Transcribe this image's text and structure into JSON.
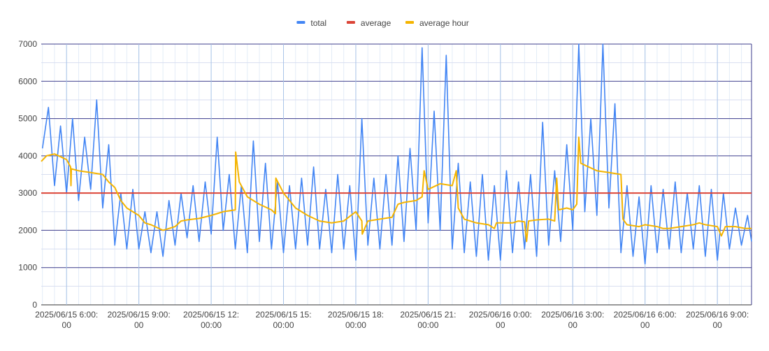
{
  "chart_data": {
    "type": "line",
    "title": "",
    "xlabel": "",
    "ylabel": "",
    "ylim": [
      0,
      7000
    ],
    "y_ticks": [
      0,
      1000,
      2000,
      3000,
      4000,
      5000,
      6000,
      7000
    ],
    "grid": true,
    "legend_position": "top-center",
    "x_range": [
      "2025/06/15 04:57",
      "2025/06/16 10:25"
    ],
    "x_tick_labels": [
      {
        "time": "2025/06/15 06:00",
        "line1": "2025/06/15 6:00:",
        "line2": "00"
      },
      {
        "time": "2025/06/15 09:00",
        "line1": "2025/06/15 9:00:",
        "line2": "00"
      },
      {
        "time": "2025/06/15 12:00",
        "line1": "2025/06/15 12:",
        "line2": "00:00"
      },
      {
        "time": "2025/06/15 15:00",
        "line1": "2025/06/15 15:",
        "line2": "00:00"
      },
      {
        "time": "2025/06/15 18:00",
        "line1": "2025/06/15 18:",
        "line2": "00:00"
      },
      {
        "time": "2025/06/15 21:00",
        "line1": "2025/06/15 21:",
        "line2": "00:00"
      },
      {
        "time": "2025/06/16 00:00",
        "line1": "2025/06/16 0:00:",
        "line2": "00"
      },
      {
        "time": "2025/06/16 03:00",
        "line1": "2025/06/16 3:00:",
        "line2": "00"
      },
      {
        "time": "2025/06/16 06:00",
        "line1": "2025/06/16 6:00:",
        "line2": "00"
      },
      {
        "time": "2025/06/16 09:00",
        "line1": "2025/06/16 9:00:",
        "line2": "00"
      }
    ],
    "series": [
      {
        "name": "total",
        "color": "#4285F4",
        "points": [
          [
            "2025/06/15 05:00",
            4200
          ],
          [
            "2025/06/15 05:15",
            5300
          ],
          [
            "2025/06/15 05:30",
            3200
          ],
          [
            "2025/06/15 05:45",
            4800
          ],
          [
            "2025/06/15 06:00",
            3000
          ],
          [
            "2025/06/15 06:15",
            5000
          ],
          [
            "2025/06/15 06:30",
            2800
          ],
          [
            "2025/06/15 06:45",
            4500
          ],
          [
            "2025/06/15 07:00",
            3100
          ],
          [
            "2025/06/15 07:15",
            5500
          ],
          [
            "2025/06/15 07:30",
            2600
          ],
          [
            "2025/06/15 07:45",
            4300
          ],
          [
            "2025/06/15 08:00",
            1600
          ],
          [
            "2025/06/15 08:15",
            3000
          ],
          [
            "2025/06/15 08:30",
            1500
          ],
          [
            "2025/06/15 08:45",
            3100
          ],
          [
            "2025/06/15 09:00",
            1500
          ],
          [
            "2025/06/15 09:15",
            2500
          ],
          [
            "2025/06/15 09:30",
            1400
          ],
          [
            "2025/06/15 09:45",
            2500
          ],
          [
            "2025/06/15 10:00",
            1300
          ],
          [
            "2025/06/15 10:15",
            2800
          ],
          [
            "2025/06/15 10:30",
            1600
          ],
          [
            "2025/06/15 10:45",
            3000
          ],
          [
            "2025/06/15 11:00",
            1800
          ],
          [
            "2025/06/15 11:15",
            3200
          ],
          [
            "2025/06/15 11:30",
            1700
          ],
          [
            "2025/06/15 11:45",
            3300
          ],
          [
            "2025/06/15 12:00",
            1900
          ],
          [
            "2025/06/15 12:15",
            4500
          ],
          [
            "2025/06/15 12:30",
            2000
          ],
          [
            "2025/06/15 12:45",
            3500
          ],
          [
            "2025/06/15 13:00",
            1500
          ],
          [
            "2025/06/15 13:15",
            3200
          ],
          [
            "2025/06/15 13:30",
            1400
          ],
          [
            "2025/06/15 13:45",
            4400
          ],
          [
            "2025/06/15 14:00",
            1700
          ],
          [
            "2025/06/15 14:15",
            3800
          ],
          [
            "2025/06/15 14:30",
            1500
          ],
          [
            "2025/06/15 14:45",
            3300
          ],
          [
            "2025/06/15 15:00",
            1400
          ],
          [
            "2025/06/15 15:15",
            3200
          ],
          [
            "2025/06/15 15:30",
            1500
          ],
          [
            "2025/06/15 15:45",
            3400
          ],
          [
            "2025/06/15 16:00",
            1600
          ],
          [
            "2025/06/15 16:15",
            3700
          ],
          [
            "2025/06/15 16:30",
            1500
          ],
          [
            "2025/06/15 16:45",
            3100
          ],
          [
            "2025/06/15 17:00",
            1400
          ],
          [
            "2025/06/15 17:15",
            3500
          ],
          [
            "2025/06/15 17:30",
            1500
          ],
          [
            "2025/06/15 17:45",
            3200
          ],
          [
            "2025/06/15 18:00",
            1200
          ],
          [
            "2025/06/15 18:15",
            5000
          ],
          [
            "2025/06/15 18:30",
            1600
          ],
          [
            "2025/06/15 18:45",
            3400
          ],
          [
            "2025/06/15 19:00",
            1500
          ],
          [
            "2025/06/15 19:15",
            3500
          ],
          [
            "2025/06/15 19:30",
            1600
          ],
          [
            "2025/06/15 19:45",
            4000
          ],
          [
            "2025/06/15 20:00",
            1700
          ],
          [
            "2025/06/15 20:15",
            4200
          ],
          [
            "2025/06/15 20:30",
            2000
          ],
          [
            "2025/06/15 20:45",
            6900
          ],
          [
            "2025/06/15 21:00",
            2200
          ],
          [
            "2025/06/15 21:15",
            5200
          ],
          [
            "2025/06/15 21:30",
            2000
          ],
          [
            "2025/06/15 21:45",
            6700
          ],
          [
            "2025/06/15 22:00",
            1500
          ],
          [
            "2025/06/15 22:15",
            3800
          ],
          [
            "2025/06/15 22:30",
            1400
          ],
          [
            "2025/06/15 22:45",
            3300
          ],
          [
            "2025/06/15 23:00",
            1300
          ],
          [
            "2025/06/15 23:15",
            3500
          ],
          [
            "2025/06/15 23:30",
            1200
          ],
          [
            "2025/06/15 23:45",
            3200
          ],
          [
            "2025/06/16 00:00",
            1200
          ],
          [
            "2025/06/16 00:15",
            3600
          ],
          [
            "2025/06/16 00:30",
            1400
          ],
          [
            "2025/06/16 00:45",
            3300
          ],
          [
            "2025/06/16 01:00",
            1500
          ],
          [
            "2025/06/16 01:15",
            3500
          ],
          [
            "2025/06/16 01:30",
            1300
          ],
          [
            "2025/06/16 01:45",
            4900
          ],
          [
            "2025/06/16 02:00",
            1600
          ],
          [
            "2025/06/16 02:15",
            3600
          ],
          [
            "2025/06/16 02:30",
            1700
          ],
          [
            "2025/06/16 02:45",
            4300
          ],
          [
            "2025/06/16 03:00",
            2000
          ],
          [
            "2025/06/16 03:15",
            7000
          ],
          [
            "2025/06/16 03:30",
            2500
          ],
          [
            "2025/06/16 03:45",
            5000
          ],
          [
            "2025/06/16 04:00",
            2400
          ],
          [
            "2025/06/16 04:15",
            7000
          ],
          [
            "2025/06/16 04:30",
            2600
          ],
          [
            "2025/06/16 04:45",
            5400
          ],
          [
            "2025/06/16 05:00",
            1400
          ],
          [
            "2025/06/16 05:15",
            3200
          ],
          [
            "2025/06/16 05:30",
            1300
          ],
          [
            "2025/06/16 05:45",
            2900
          ],
          [
            "2025/06/16 06:00",
            1100
          ],
          [
            "2025/06/16 06:15",
            3200
          ],
          [
            "2025/06/16 06:30",
            1400
          ],
          [
            "2025/06/16 06:45",
            3100
          ],
          [
            "2025/06/16 07:00",
            1500
          ],
          [
            "2025/06/16 07:15",
            3300
          ],
          [
            "2025/06/16 07:30",
            1400
          ],
          [
            "2025/06/16 07:45",
            3000
          ],
          [
            "2025/06/16 08:00",
            1500
          ],
          [
            "2025/06/16 08:15",
            3200
          ],
          [
            "2025/06/16 08:30",
            1300
          ],
          [
            "2025/06/16 08:45",
            3100
          ],
          [
            "2025/06/16 09:00",
            1200
          ],
          [
            "2025/06/16 09:15",
            3000
          ],
          [
            "2025/06/16 09:30",
            1500
          ],
          [
            "2025/06/16 09:45",
            2600
          ],
          [
            "2025/06/16 10:00",
            1600
          ],
          [
            "2025/06/16 10:15",
            2400
          ],
          [
            "2025/06/16 10:25",
            1700
          ]
        ]
      },
      {
        "name": "average",
        "color": "#DB4437",
        "points": [
          [
            "2025/06/15 04:57",
            3000
          ],
          [
            "2025/06/16 10:25",
            3000
          ]
        ]
      },
      {
        "name": "average hour",
        "color": "#F4B400",
        "points": [
          [
            "2025/06/15 04:57",
            3850
          ],
          [
            "2025/06/15 05:10",
            4000
          ],
          [
            "2025/06/15 05:30",
            4050
          ],
          [
            "2025/06/15 06:00",
            3900
          ],
          [
            "2025/06/15 06:10",
            3700
          ],
          [
            "2025/06/15 06:11",
            3200
          ],
          [
            "2025/06/15 06:12",
            3650
          ],
          [
            "2025/06/15 06:30",
            3600
          ],
          [
            "2025/06/15 07:00",
            3550
          ],
          [
            "2025/06/15 07:30",
            3500
          ],
          [
            "2025/06/15 07:45",
            3300
          ],
          [
            "2025/06/15 08:00",
            3150
          ],
          [
            "2025/06/15 08:15",
            2800
          ],
          [
            "2025/06/15 08:30",
            2600
          ],
          [
            "2025/06/15 09:00",
            2400
          ],
          [
            "2025/06/15 09:15",
            2200
          ],
          [
            "2025/06/15 09:30",
            2150
          ],
          [
            "2025/06/15 10:00",
            2000
          ],
          [
            "2025/06/15 10:15",
            2050
          ],
          [
            "2025/06/15 10:30",
            2100
          ],
          [
            "2025/06/15 10:45",
            2250
          ],
          [
            "2025/06/15 11:00",
            2280
          ],
          [
            "2025/06/15 11:30",
            2320
          ],
          [
            "2025/06/15 12:00",
            2400
          ],
          [
            "2025/06/15 12:15",
            2450
          ],
          [
            "2025/06/15 12:30",
            2500
          ],
          [
            "2025/06/15 13:00",
            2550
          ],
          [
            "2025/06/15 13:01",
            4100
          ],
          [
            "2025/06/15 13:10",
            3300
          ],
          [
            "2025/06/15 13:30",
            2900
          ],
          [
            "2025/06/15 14:00",
            2700
          ],
          [
            "2025/06/15 14:30",
            2550
          ],
          [
            "2025/06/15 14:40",
            2450
          ],
          [
            "2025/06/15 14:41",
            3400
          ],
          [
            "2025/06/15 15:00",
            3000
          ],
          [
            "2025/06/15 15:30",
            2600
          ],
          [
            "2025/06/15 16:00",
            2400
          ],
          [
            "2025/06/15 16:30",
            2250
          ],
          [
            "2025/06/15 17:00",
            2200
          ],
          [
            "2025/06/15 17:30",
            2250
          ],
          [
            "2025/06/15 18:00",
            2500
          ],
          [
            "2025/06/15 18:15",
            2250
          ],
          [
            "2025/06/15 18:16",
            1900
          ],
          [
            "2025/06/15 18:30",
            2250
          ],
          [
            "2025/06/15 19:00",
            2300
          ],
          [
            "2025/06/15 19:30",
            2350
          ],
          [
            "2025/06/15 19:45",
            2700
          ],
          [
            "2025/06/15 20:00",
            2750
          ],
          [
            "2025/06/15 20:30",
            2800
          ],
          [
            "2025/06/15 20:45",
            2900
          ],
          [
            "2025/06/15 20:50",
            3600
          ],
          [
            "2025/06/15 21:00",
            3100
          ],
          [
            "2025/06/15 21:30",
            3250
          ],
          [
            "2025/06/15 22:00",
            3200
          ],
          [
            "2025/06/15 22:10",
            3600
          ],
          [
            "2025/06/15 22:15",
            2600
          ],
          [
            "2025/06/15 22:30",
            2300
          ],
          [
            "2025/06/15 23:00",
            2200
          ],
          [
            "2025/06/15 23:30",
            2150
          ],
          [
            "2025/06/15 23:45",
            2050
          ],
          [
            "2025/06/15 23:50",
            2200
          ],
          [
            "2025/06/16 00:00",
            2200
          ],
          [
            "2025/06/16 00:30",
            2200
          ],
          [
            "2025/06/16 00:45",
            2250
          ],
          [
            "2025/06/16 01:00",
            2230
          ],
          [
            "2025/06/16 01:05",
            1700
          ],
          [
            "2025/06/16 01:10",
            2250
          ],
          [
            "2025/06/16 01:30",
            2280
          ],
          [
            "2025/06/16 02:00",
            2300
          ],
          [
            "2025/06/16 02:15",
            2250
          ],
          [
            "2025/06/16 02:20",
            3400
          ],
          [
            "2025/06/16 02:25",
            2550
          ],
          [
            "2025/06/16 02:45",
            2600
          ],
          [
            "2025/06/16 03:00",
            2550
          ],
          [
            "2025/06/16 03:10",
            2700
          ],
          [
            "2025/06/16 03:15",
            4500
          ],
          [
            "2025/06/16 03:20",
            3800
          ],
          [
            "2025/06/16 03:30",
            3750
          ],
          [
            "2025/06/16 04:00",
            3600
          ],
          [
            "2025/06/16 04:30",
            3550
          ],
          [
            "2025/06/16 05:00",
            3500
          ],
          [
            "2025/06/16 05:05",
            2300
          ],
          [
            "2025/06/16 05:15",
            2150
          ],
          [
            "2025/06/16 05:45",
            2100
          ],
          [
            "2025/06/16 06:00",
            2150
          ],
          [
            "2025/06/16 06:30",
            2100
          ],
          [
            "2025/06/16 06:45",
            2050
          ],
          [
            "2025/06/16 07:00",
            2050
          ],
          [
            "2025/06/16 07:30",
            2100
          ],
          [
            "2025/06/16 08:00",
            2150
          ],
          [
            "2025/06/16 08:15",
            2200
          ],
          [
            "2025/06/16 08:30",
            2150
          ],
          [
            "2025/06/16 09:00",
            2100
          ],
          [
            "2025/06/16 09:10",
            1850
          ],
          [
            "2025/06/16 09:20",
            2100
          ],
          [
            "2025/06/16 09:45",
            2100
          ],
          [
            "2025/06/16 10:10",
            2050
          ],
          [
            "2025/06/16 10:25",
            2050
          ]
        ]
      }
    ]
  }
}
